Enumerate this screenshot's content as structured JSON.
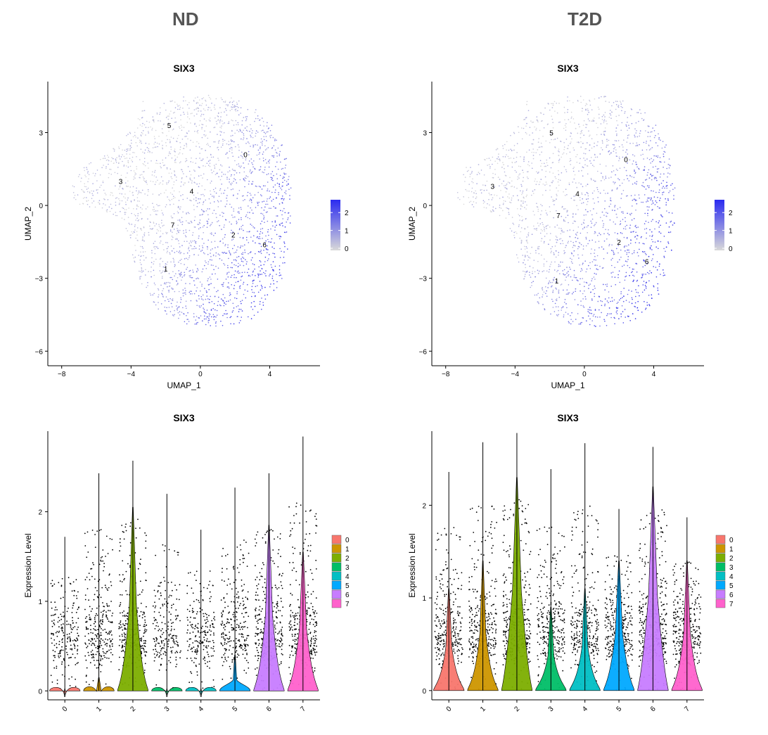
{
  "groups": {
    "left": "ND",
    "right": "T2D"
  },
  "chart_data": [
    {
      "type": "scatter",
      "subtype": "umap-feature-plot",
      "panel": "ND",
      "title": "SIX3",
      "xlabel": "UMAP_1",
      "ylabel": "UMAP_2",
      "xlim": [
        -8.8,
        6.9
      ],
      "ylim": [
        -6.6,
        5.1
      ],
      "xticks": [
        -8,
        -4,
        0,
        4
      ],
      "yticks": [
        -6,
        -3,
        0,
        3
      ],
      "cluster_labels": [
        {
          "label": "0",
          "x": 2.6,
          "y": 2.1
        },
        {
          "label": "1",
          "x": -2.0,
          "y": -2.6
        },
        {
          "label": "2",
          "x": 1.9,
          "y": -1.2
        },
        {
          "label": "3",
          "x": -4.6,
          "y": 1.0
        },
        {
          "label": "4",
          "x": -0.5,
          "y": 0.6
        },
        {
          "label": "5",
          "x": -1.8,
          "y": 3.3
        },
        {
          "label": "6",
          "x": 3.7,
          "y": -1.6
        },
        {
          "label": "7",
          "x": -1.6,
          "y": -0.8
        }
      ],
      "colorbar": {
        "ticks": [
          0,
          1,
          2
        ],
        "low_color": "#d9d9d9",
        "high_color": "#2b2bf0"
      },
      "high_expression_region": "lower-right"
    },
    {
      "type": "scatter",
      "subtype": "umap-feature-plot",
      "panel": "T2D",
      "title": "SIX3",
      "xlabel": "UMAP_1",
      "ylabel": "UMAP_2",
      "xlim": [
        -8.8,
        6.9
      ],
      "ylim": [
        -6.6,
        5.1
      ],
      "xticks": [
        -8,
        -4,
        0,
        4
      ],
      "yticks": [
        -6,
        -3,
        0,
        3
      ],
      "cluster_labels": [
        {
          "label": "0",
          "x": 2.4,
          "y": 1.9
        },
        {
          "label": "1",
          "x": -1.6,
          "y": -3.1
        },
        {
          "label": "2",
          "x": 2.0,
          "y": -1.5
        },
        {
          "label": "3",
          "x": -5.3,
          "y": 0.8
        },
        {
          "label": "4",
          "x": -0.4,
          "y": 0.5
        },
        {
          "label": "5",
          "x": -1.9,
          "y": 3.0
        },
        {
          "label": "6",
          "x": 3.6,
          "y": -2.3
        },
        {
          "label": "7",
          "x": -1.5,
          "y": -0.4
        }
      ],
      "colorbar": {
        "ticks": [
          0,
          1,
          2
        ],
        "low_color": "#d9d9d9",
        "high_color": "#2b2bf0"
      },
      "high_expression_region": "lower-right"
    },
    {
      "type": "violin",
      "panel": "ND",
      "title": "SIX3",
      "xlabel": "",
      "ylabel": "Expression Level",
      "ylim": [
        -0.1,
        2.9
      ],
      "yticks": [
        0,
        1,
        2
      ],
      "categories": [
        "0",
        "1",
        "2",
        "3",
        "4",
        "5",
        "6",
        "7"
      ],
      "max_values": [
        1.72,
        2.43,
        2.57,
        2.2,
        1.8,
        2.27,
        2.43,
        2.84
      ],
      "violin_widths": [
        0.05,
        0.4,
        0.6,
        0.05,
        0.05,
        0.3,
        0.6,
        0.6
      ],
      "violin_tops": [
        0.02,
        0.15,
        2.05,
        0.02,
        0.02,
        0.4,
        1.85,
        1.55
      ],
      "colors": [
        "#f8766d",
        "#cd9600",
        "#7cae00",
        "#00be67",
        "#00bfc4",
        "#00a9ff",
        "#c77cff",
        "#ff61cc"
      ],
      "legend": [
        "0",
        "1",
        "2",
        "3",
        "4",
        "5",
        "6",
        "7"
      ],
      "legend_position": "right"
    },
    {
      "type": "violin",
      "panel": "T2D",
      "title": "SIX3",
      "xlabel": "",
      "ylabel": "Expression Level",
      "ylim": [
        -0.1,
        2.8
      ],
      "yticks": [
        0,
        1,
        2
      ],
      "categories": [
        "0",
        "1",
        "2",
        "3",
        "4",
        "5",
        "6",
        "7"
      ],
      "max_values": [
        2.36,
        2.68,
        2.78,
        2.39,
        2.67,
        1.96,
        2.63,
        1.87
      ],
      "violin_widths": [
        0.5,
        0.5,
        0.75,
        0.5,
        0.5,
        0.6,
        0.75,
        0.55
      ],
      "violin_tops": [
        1.1,
        1.4,
        2.3,
        0.9,
        1.1,
        1.4,
        2.2,
        1.4
      ],
      "colors": [
        "#f8766d",
        "#cd9600",
        "#7cae00",
        "#00be67",
        "#00bfc4",
        "#00a9ff",
        "#c77cff",
        "#ff61cc"
      ],
      "legend": [
        "0",
        "1",
        "2",
        "3",
        "4",
        "5",
        "6",
        "7"
      ],
      "legend_position": "right"
    }
  ]
}
